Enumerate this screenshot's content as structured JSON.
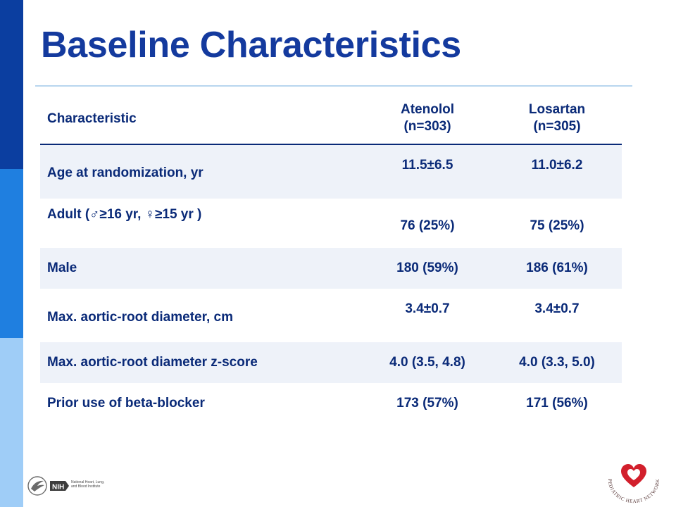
{
  "slide": {
    "title": "Baseline Characteristics"
  },
  "table": {
    "columns": {
      "characteristic": "Characteristic",
      "atenolol": {
        "name": "Atenolol",
        "n": "(n=303)"
      },
      "losartan": {
        "name": "Losartan",
        "n": "(n=305)"
      }
    },
    "rows": [
      {
        "label": "Age at randomization, yr",
        "atenolol": "11.5±6.5",
        "losartan": "11.0±6.2"
      },
      {
        "label": "Adult (♂≥16 yr, ♀≥15 yr )",
        "atenolol": "76 (25%)",
        "losartan": "75 (25%)"
      },
      {
        "label": "Male",
        "atenolol": "180 (59%)",
        "losartan": "186 (61%)"
      },
      {
        "label": "Max. aortic-root diameter, cm",
        "atenolol": "3.4±0.7",
        "losartan": "3.4±0.7"
      },
      {
        "label": "Max. aortic-root diameter z-score",
        "atenolol": "4.0 (3.5, 4.8)",
        "losartan": "4.0 (3.3, 5.0)"
      },
      {
        "label": "Prior use of beta-blocker",
        "atenolol": "173 (57%)",
        "losartan": "171 (56%)"
      }
    ]
  },
  "logos": {
    "hhs": {
      "icon": "hhs-eagle-icon",
      "nih_mark": "NIH",
      "nih_text": "National Heart, Lung, and Blood Institute"
    },
    "phn": {
      "icon": "heart-icon",
      "text": "PEDIATRIC HEART NETWORK"
    }
  },
  "colors": {
    "title": "#143a9e",
    "text": "#0a2a78",
    "row_shade": "#eef2f9",
    "sidebar": [
      "#0b3ea0",
      "#1f7fe0",
      "#9fcdf7"
    ],
    "heart": "#d21f2c"
  }
}
